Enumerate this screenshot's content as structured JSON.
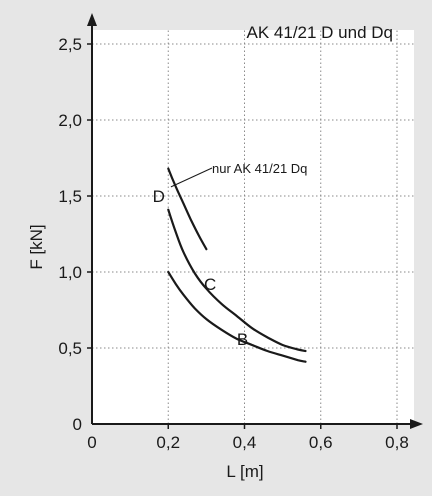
{
  "colors": {
    "background": "#e6e6e6",
    "plot_area": "#ffffff",
    "grid": "#8a8a8a",
    "axis": "#1a1a1a",
    "series": "#1a1a1a"
  },
  "chart_data": {
    "type": "line",
    "title": "AK 41/21 D und Dq",
    "xlabel": "L [m]",
    "ylabel": "F [kN]",
    "xlim": [
      0,
      0.8
    ],
    "ylim": [
      0,
      2.5
    ],
    "x_ticks": [
      0,
      0.2,
      0.4,
      0.6,
      0.8
    ],
    "x_tick_labels": [
      "0",
      "0,2",
      "0,4",
      "0,6",
      "0,8"
    ],
    "y_ticks": [
      0,
      0.5,
      1.0,
      1.5,
      2.0,
      2.5
    ],
    "y_tick_labels": [
      "0",
      "0,5",
      "1,0",
      "1,5",
      "2,0",
      "2,5"
    ],
    "grid": true,
    "grid_style": "dotted",
    "series": [
      {
        "name": "D",
        "points": [
          [
            0.2,
            1.68
          ],
          [
            0.22,
            1.56
          ],
          [
            0.24,
            1.45
          ],
          [
            0.26,
            1.34
          ],
          [
            0.28,
            1.24
          ],
          [
            0.3,
            1.15
          ]
        ]
      },
      {
        "name": "C",
        "points": [
          [
            0.2,
            1.41
          ],
          [
            0.22,
            1.26
          ],
          [
            0.24,
            1.13
          ],
          [
            0.27,
            0.99
          ],
          [
            0.3,
            0.89
          ],
          [
            0.34,
            0.79
          ],
          [
            0.38,
            0.71
          ],
          [
            0.42,
            0.63
          ],
          [
            0.46,
            0.57
          ],
          [
            0.5,
            0.52
          ],
          [
            0.54,
            0.49
          ],
          [
            0.56,
            0.48
          ]
        ]
      },
      {
        "name": "B",
        "points": [
          [
            0.2,
            1.0
          ],
          [
            0.22,
            0.92
          ],
          [
            0.24,
            0.85
          ],
          [
            0.27,
            0.76
          ],
          [
            0.3,
            0.69
          ],
          [
            0.34,
            0.62
          ],
          [
            0.38,
            0.56
          ],
          [
            0.42,
            0.52
          ],
          [
            0.46,
            0.48
          ],
          [
            0.5,
            0.45
          ],
          [
            0.54,
            0.42
          ],
          [
            0.56,
            0.41
          ]
        ]
      }
    ],
    "annotations": [
      {
        "text": "nur AK 41/21 Dq",
        "points_to_series": "D"
      }
    ]
  }
}
